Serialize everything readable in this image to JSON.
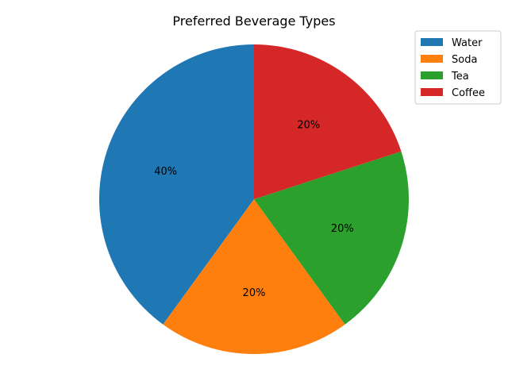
{
  "chart_data": {
    "type": "pie",
    "title": "Preferred Beverage Types",
    "categories": [
      "Water",
      "Soda",
      "Tea",
      "Coffee"
    ],
    "values": [
      40,
      20,
      20,
      20
    ],
    "labels": [
      "40%",
      "20%",
      "20%",
      "20%"
    ],
    "colors": [
      "#1f77b4",
      "#ff7f0e",
      "#2ca02c",
      "#d62728"
    ],
    "start_angle_deg": 90,
    "direction": "counterclockwise",
    "legend_placement": "top-right"
  }
}
